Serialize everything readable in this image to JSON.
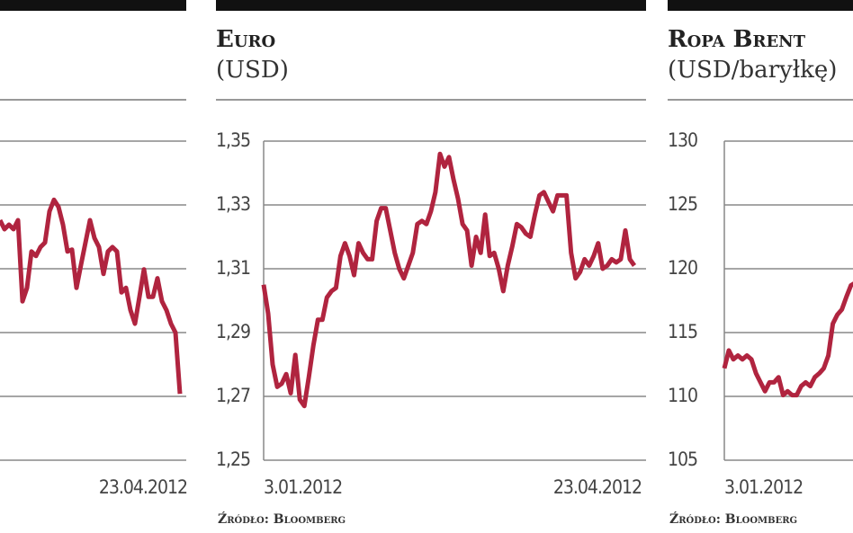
{
  "chart_data": [
    {
      "type": "line",
      "color": "#b0243f",
      "tick_labels_shown": false,
      "grid": true,
      "ylim": [
        0,
        5
      ],
      "yticks": [
        0,
        1,
        2,
        3,
        4,
        5
      ],
      "x_labels": [
        "23.04.2012"
      ],
      "values": [
        3.76,
        3.62,
        3.69,
        3.62,
        3.76,
        2.49,
        2.7,
        3.27,
        3.2,
        3.34,
        3.41,
        3.9,
        4.08,
        3.97,
        3.69,
        3.27,
        3.3,
        2.7,
        3.06,
        3.41,
        3.76,
        3.48,
        3.34,
        2.92,
        3.27,
        3.34,
        3.27,
        2.63,
        2.7,
        2.35,
        2.14,
        2.56,
        2.99,
        2.56,
        2.56,
        2.85,
        2.49,
        2.35,
        2.14,
        2.0,
        1.04
      ]
    },
    {
      "type": "line",
      "title": "Euro",
      "subtitle": "(USD)",
      "color": "#b0243f",
      "tick_labels_shown": true,
      "grid": true,
      "ylim": [
        1.25,
        1.35
      ],
      "yticks": [
        {
          "value": 1.25,
          "label": "1,25"
        },
        {
          "value": 1.27,
          "label": "1,27"
        },
        {
          "value": 1.29,
          "label": "1,29"
        },
        {
          "value": 1.31,
          "label": "1,31"
        },
        {
          "value": 1.33,
          "label": "1,33"
        },
        {
          "value": 1.35,
          "label": "1,35"
        }
      ],
      "x_labels": [
        "3.01.2012",
        "23.04.2012"
      ],
      "source": "Źródło: Bloomberg",
      "values": [
        1.305,
        1.296,
        1.28,
        1.273,
        1.274,
        1.277,
        1.271,
        1.283,
        1.269,
        1.267,
        1.276,
        1.286,
        1.294,
        1.294,
        1.301,
        1.303,
        1.304,
        1.314,
        1.318,
        1.314,
        1.308,
        1.318,
        1.315,
        1.313,
        1.313,
        1.325,
        1.329,
        1.329,
        1.322,
        1.315,
        1.31,
        1.307,
        1.311,
        1.315,
        1.324,
        1.325,
        1.324,
        1.328,
        1.334,
        1.346,
        1.342,
        1.345,
        1.338,
        1.332,
        1.324,
        1.322,
        1.311,
        1.32,
        1.315,
        1.327,
        1.314,
        1.315,
        1.31,
        1.303,
        1.311,
        1.317,
        1.324,
        1.323,
        1.321,
        1.32,
        1.327,
        1.333,
        1.334,
        1.331,
        1.328,
        1.333,
        1.333,
        1.333,
        1.315,
        1.307,
        1.309,
        1.313,
        1.311,
        1.314,
        1.318,
        1.31,
        1.311,
        1.313,
        1.312,
        1.313,
        1.322,
        1.313,
        1.311
      ]
    },
    {
      "type": "line",
      "title": "Ropa Brent",
      "subtitle": "(USD/baryłkę)",
      "color": "#b0243f",
      "tick_labels_shown": true,
      "grid": true,
      "ylim": [
        105,
        130
      ],
      "yticks": [
        105,
        110,
        115,
        120,
        125,
        130
      ],
      "x_labels": [
        "3.01.2012"
      ],
      "source": "Źródło: Bloomberg",
      "values": [
        112.2,
        113.6,
        112.9,
        113.2,
        112.9,
        113.2,
        112.9,
        111.8,
        111.1,
        110.4,
        111.1,
        111.1,
        111.5,
        110.1,
        110.4,
        110.1,
        110.1,
        110.8,
        111.1,
        110.8,
        111.5,
        111.8,
        112.2,
        113.2,
        115.7,
        116.4,
        116.8,
        117.8,
        118.7,
        118.9
      ]
    }
  ]
}
